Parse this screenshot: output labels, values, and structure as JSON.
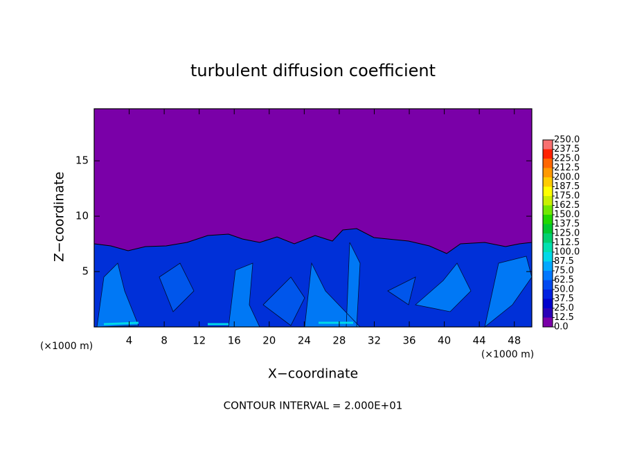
{
  "chart_data": {
    "type": "contour",
    "title": "turbulent diffusion coefficient",
    "x_label": "X−coordinate",
    "y_label": "Z−coordinate",
    "x_unit_left": "(×1000 m)",
    "x_unit_right": "(×1000 m)",
    "footer": "CONTOUR INTERVAL = 2.000E+01",
    "xlim": [
      0,
      50
    ],
    "xticks": [
      4,
      8,
      12,
      16,
      20,
      24,
      28,
      32,
      36,
      40,
      44,
      48
    ],
    "ylim": [
      0,
      19.7
    ],
    "yticks": [
      5,
      10,
      15
    ],
    "colorbar": {
      "levels": [
        {
          "value": 0,
          "label": "0.0"
        },
        {
          "value": 12.5,
          "label": "12.5"
        },
        {
          "value": 25,
          "label": "25.0"
        },
        {
          "value": 37.5,
          "label": "37.5"
        },
        {
          "value": 50,
          "label": "50.0"
        },
        {
          "value": 62.5,
          "label": "62.5"
        },
        {
          "value": 75,
          "label": "75.0"
        },
        {
          "value": 87.5,
          "label": "87.5"
        },
        {
          "value": 100,
          "label": "100.0"
        },
        {
          "value": 112.5,
          "label": "112.5"
        },
        {
          "value": 125,
          "label": "125.0"
        },
        {
          "value": 137.5,
          "label": "137.5"
        },
        {
          "value": 150,
          "label": "150.0"
        },
        {
          "value": 162.5,
          "label": "162.5"
        },
        {
          "value": 175,
          "label": "175.0"
        },
        {
          "value": 187.5,
          "label": "187.5"
        },
        {
          "value": 200,
          "label": "200.0"
        },
        {
          "value": 212.5,
          "label": "212.5"
        },
        {
          "value": 225,
          "label": "225.0"
        },
        {
          "value": 237.5,
          "label": "237.5"
        },
        {
          "value": 250,
          "label": "250.0"
        }
      ],
      "colors": [
        "#7a00a8",
        "#2a00b8",
        "#0000cc",
        "#0020e0",
        "#0048f0",
        "#0078ff",
        "#00a8ff",
        "#00d8e8",
        "#00e0b0",
        "#00d070",
        "#00c830",
        "#20d800",
        "#70e800",
        "#c8f000",
        "#ffff00",
        "#ffcc00",
        "#ff9900",
        "#ff6600",
        "#ff2200",
        "#f87070"
      ]
    }
  }
}
